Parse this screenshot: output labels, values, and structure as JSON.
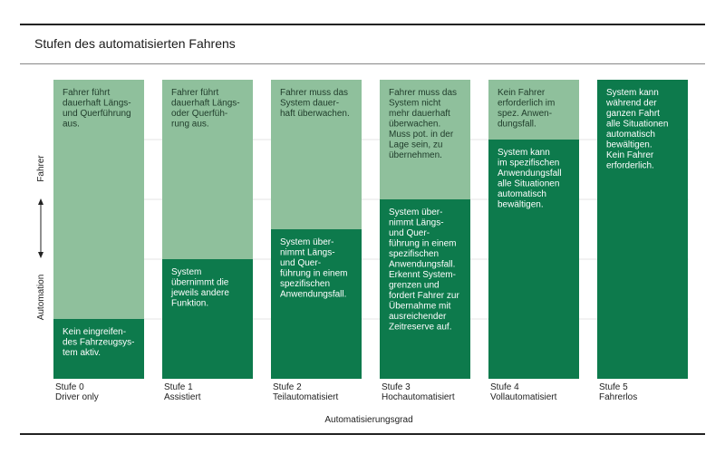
{
  "title": "Stufen des automatisierten Fahrens",
  "chart_data": {
    "type": "bar",
    "stacked": true,
    "title": "Stufen des automatisierten Fahrens",
    "xlabel": "Automatisierungsgrad",
    "ylabel_top": "Fahrer",
    "ylabel_bottom": "Automation",
    "ylim": [
      0,
      1
    ],
    "grid": true,
    "categories": [
      [
        "Stufe 0",
        "Driver only"
      ],
      [
        "Stufe 1",
        "Assistiert"
      ],
      [
        "Stufe 2",
        "Teilautomatisiert"
      ],
      [
        "Stufe 3",
        "Hochautomatisiert"
      ],
      [
        "Stufe 4",
        "Vollautomatisiert"
      ],
      [
        "Stufe 5",
        "Fahrerlos"
      ]
    ],
    "automation_share": [
      0.2,
      0.4,
      0.5,
      0.6,
      0.8,
      1.0
    ],
    "driver_text": [
      [
        "Fahrer führt",
        "dauerhaft Längs-",
        "und Querführung",
        "aus."
      ],
      [
        "Fahrer führt",
        "dauerhaft Längs-",
        "oder Querfüh-",
        "rung aus."
      ],
      [
        "Fahrer muss das",
        "System dauer-",
        "haft überwachen."
      ],
      [
        "Fahrer muss das",
        "System nicht",
        "mehr dauerhaft",
        "überwachen.",
        "Muss pot. in der",
        "Lage sein, zu",
        "übernehmen."
      ],
      [
        "Kein Fahrer",
        "erforderlich im",
        "spez. Anwen-",
        "dungsfall."
      ],
      []
    ],
    "automation_text": [
      [
        "Kein eingreifen-",
        "des Fahrzeugsys-",
        "tem aktiv."
      ],
      [
        "System",
        "übernimmt die",
        "jeweils andere",
        "Funktion."
      ],
      [
        "System über-",
        "nimmt Längs-",
        "und Quer-",
        "führung in einem",
        "spezifischen",
        "Anwendungsfall."
      ],
      [
        "System über-",
        "nimmt Längs-",
        "und Quer-",
        "führung in einem",
        "spezifischen",
        "Anwendungsfall.",
        "Erkennt System-",
        "grenzen und",
        "fordert Fahrer zur",
        "Übernahme mit",
        "ausreichender",
        "Zeitreserve  auf."
      ],
      [
        "System kann",
        "im spezifischen",
        "Anwendungsfall",
        "alle Situationen",
        "automatisch",
        "bewältigen."
      ],
      [
        "System kann",
        "während der",
        "ganzen Fahrt",
        "alle Situationen",
        "automatisch",
        "bewältigen.",
        "Kein Fahrer",
        "erforderlich."
      ]
    ],
    "colors": {
      "driver": "#8fc09c",
      "automation": "#0d7a4c",
      "driver_text": "#1f3b2a",
      "automation_text": "#ffffff",
      "grid": "#e4e4e4"
    }
  }
}
